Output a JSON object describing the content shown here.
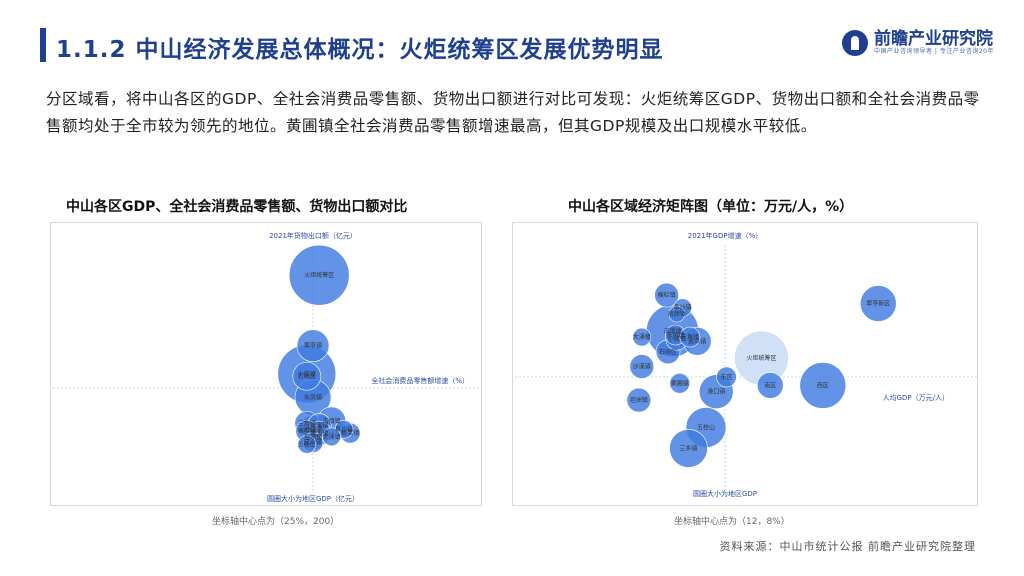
{
  "header": {
    "title": "1.1.2 中山经济发展总体概况：火炬统筹区发展优势明显",
    "logo_name": "前瞻产业研究院",
    "logo_sub": "中国产业咨询领导者 | 专注产业咨询20年"
  },
  "intro": "分区域看，将中山各区的GDP、全社会消费品零售额、货物出口额进行对比可发现：火炬统筹区GDP、货物出口额和全社会消费品零售额均处于全市较为领先的地位。黄圃镇全社会消费品零售额增速最高，但其GDP规模及出口规模水平较低。",
  "chart_data": [
    {
      "type": "scatter",
      "title": "中山各区GDP、全社会消费品零售额、货物出口额对比",
      "ylabel": "2021年货物出口额（亿元）",
      "xlabel": "全社会消费品零售额增速（%）",
      "size_label": "圆圈大小为地区GDP（亿元）",
      "note": "坐标轴中心点为（25%，200）",
      "color": "#3f7be0",
      "highlight_color": "#cfe0f7",
      "points": [
        {
          "name": "火炬统筹区",
          "x": 26,
          "y": 440,
          "size": 30
        },
        {
          "name": "黄圃镇",
          "x": 56,
          "y": 110,
          "size": 16
        },
        {
          "name": "翠亨镇",
          "x": 25,
          "y": 290,
          "size": 16
        },
        {
          "name": "小榄镇",
          "x": 24,
          "y": 230,
          "size": 29
        },
        {
          "name": "石岐区",
          "x": 24,
          "y": 225,
          "size": 14
        },
        {
          "name": "东凤镇",
          "x": 25,
          "y": 180,
          "size": 18
        },
        {
          "name": "三角镇",
          "x": 24,
          "y": 125,
          "size": 12
        },
        {
          "name": "横栏镇",
          "x": 24,
          "y": 108,
          "size": 11
        },
        {
          "name": "港口镇",
          "x": 25,
          "y": 112,
          "size": 14
        },
        {
          "name": "沙溪镇",
          "x": 26,
          "y": 120,
          "size": 12
        },
        {
          "name": "坦洲镇",
          "x": 25,
          "y": 96,
          "size": 13
        },
        {
          "name": "南头镇",
          "x": 26,
          "y": 104,
          "size": 12
        },
        {
          "name": "古镇镇",
          "x": 28,
          "y": 130,
          "size": 14
        },
        {
          "name": "民众镇",
          "x": 25,
          "y": 84,
          "size": 10
        },
        {
          "name": "阜沙镇",
          "x": 30,
          "y": 112,
          "size": 9
        },
        {
          "name": "大涌镇",
          "x": 28,
          "y": 96,
          "size": 9
        },
        {
          "name": "板芙镇",
          "x": 31,
          "y": 104,
          "size": 10
        },
        {
          "name": "五桂山",
          "x": 24,
          "y": 80,
          "size": 9
        }
      ]
    },
    {
      "type": "scatter",
      "title": "中山各区域经济矩阵图（单位：万元/人，%）",
      "ylabel": "2021年GDP增速（%）",
      "xlabel": "人均GDP（万元/人）",
      "size_label": "圆圈大小为地区GDP",
      "note": "坐标轴中心点为（12，8%）",
      "color": "#3f7be0",
      "highlight_color": "#cfe0f7",
      "points": [
        {
          "name": "翠亨新区",
          "x": 22.5,
          "y": 11.5,
          "size": 18
        },
        {
          "name": "横栏镇",
          "x": 8.0,
          "y": 11.9,
          "size": 12
        },
        {
          "name": "阜沙镇",
          "x": 9.1,
          "y": 11.3,
          "size": 9
        },
        {
          "name": "南朗镇",
          "x": 8.7,
          "y": 11.0,
          "size": 8
        },
        {
          "name": "古镇镇",
          "x": 8.4,
          "y": 10.2,
          "size": 26
        },
        {
          "name": "东凤镇",
          "x": 8.6,
          "y": 10.0,
          "size": 10
        },
        {
          "name": "大涌镇",
          "x": 6.3,
          "y": 9.9,
          "size": 9
        },
        {
          "name": "小榄镇",
          "x": 8.7,
          "y": 9.8,
          "size": 11
        },
        {
          "name": "三角镇",
          "x": 9.6,
          "y": 9.9,
          "size": 10
        },
        {
          "name": "民众镇",
          "x": 10.1,
          "y": 9.7,
          "size": 14
        },
        {
          "name": "石岐区",
          "x": 8.1,
          "y": 9.2,
          "size": 12
        },
        {
          "name": "火炬统筹区",
          "x": 14.5,
          "y": 8.9,
          "size": 27
        },
        {
          "name": "沙溪镇",
          "x": 6.3,
          "y": 8.5,
          "size": 12
        },
        {
          "name": "东区",
          "x": 12.1,
          "y": 8.0,
          "size": 10
        },
        {
          "name": "南区",
          "x": 15.1,
          "y": 7.6,
          "size": 13
        },
        {
          "name": "西区",
          "x": 18.7,
          "y": 7.6,
          "size": 23
        },
        {
          "name": "黄圃镇",
          "x": 8.9,
          "y": 7.7,
          "size": 10
        },
        {
          "name": "港口镇",
          "x": 11.4,
          "y": 7.3,
          "size": 17
        },
        {
          "name": "坦洲镇",
          "x": 6.1,
          "y": 6.9,
          "size": 12
        },
        {
          "name": "五桂山",
          "x": 10.7,
          "y": 5.6,
          "size": 20
        },
        {
          "name": "三乡镇",
          "x": 9.5,
          "y": 4.6,
          "size": 19
        }
      ]
    }
  ],
  "footer": {
    "source": "资料来源：中山市统计公报 前瞻产业研究院整理"
  }
}
